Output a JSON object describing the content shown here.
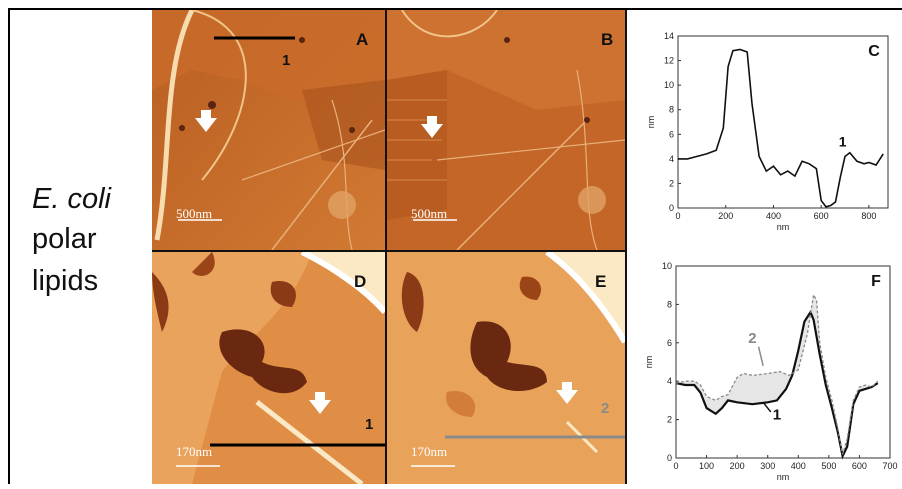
{
  "row_label": {
    "line1": "E. coli",
    "line2": "polar",
    "line3": "lipids"
  },
  "panels": {
    "A": {
      "letter": "A",
      "scale": "500nm",
      "profile_num": "1"
    },
    "B": {
      "letter": "B",
      "scale": "500nm"
    },
    "D": {
      "letter": "D",
      "scale": "170nm",
      "profile_num": "1"
    },
    "E": {
      "letter": "E",
      "scale": "170nm",
      "profile_num": "2"
    }
  },
  "colors": {
    "afm_base": "#c8702a",
    "afm_light": "#f4d7a8",
    "afm_dark": "#5a2410"
  },
  "chart_data": [
    {
      "type": "line",
      "panel": "C",
      "title": "C",
      "xlabel": "nm",
      "ylabel": "nm",
      "xlim": [
        0,
        880
      ],
      "ylim": [
        0,
        14
      ],
      "xticks": [
        "0",
        "200",
        "400",
        "600",
        "800"
      ],
      "yticks": [
        "0",
        "2",
        "4",
        "6",
        "8",
        "10",
        "12",
        "14"
      ],
      "annotation": "1",
      "series": [
        {
          "x": [
            0,
            40,
            80,
            120,
            160,
            190,
            210,
            230,
            260,
            290,
            310,
            340,
            370,
            400,
            430,
            460,
            490,
            520,
            550,
            580,
            600,
            620,
            640,
            660,
            680,
            700,
            720,
            750,
            780,
            800,
            830,
            860
          ],
          "y": [
            4.0,
            4.0,
            4.2,
            4.4,
            4.7,
            6.5,
            11.5,
            12.8,
            12.9,
            12.7,
            8.5,
            4.2,
            3.0,
            3.4,
            2.7,
            3.0,
            2.6,
            3.8,
            3.6,
            3.2,
            0.6,
            0.1,
            0.2,
            0.5,
            2.5,
            4.2,
            4.5,
            3.8,
            3.6,
            3.7,
            3.5,
            4.4
          ]
        }
      ]
    },
    {
      "type": "line",
      "panel": "F",
      "title": "F",
      "xlabel": "nm",
      "ylabel": "nm",
      "xlim": [
        0,
        700
      ],
      "ylim": [
        0,
        10
      ],
      "xticks": [
        "0",
        "100",
        "200",
        "300",
        "400",
        "500",
        "600",
        "700"
      ],
      "yticks": [
        "0",
        "2",
        "4",
        "6",
        "8",
        "10"
      ],
      "annotations": [
        "1",
        "2"
      ],
      "series": [
        {
          "name": "1",
          "x": [
            0,
            30,
            60,
            80,
            100,
            130,
            150,
            170,
            200,
            250,
            300,
            330,
            360,
            380,
            400,
            420,
            440,
            450,
            470,
            490,
            510,
            530,
            545,
            560,
            580,
            600,
            620,
            640,
            660
          ],
          "y": [
            3.9,
            3.8,
            3.8,
            3.4,
            2.6,
            2.3,
            2.6,
            3.0,
            2.9,
            2.8,
            2.9,
            3.0,
            3.6,
            4.3,
            5.6,
            7.1,
            7.6,
            7.2,
            5.4,
            3.8,
            2.6,
            1.3,
            0.1,
            0.6,
            2.8,
            3.5,
            3.6,
            3.7,
            3.9
          ]
        },
        {
          "name": "2",
          "x": [
            0,
            30,
            60,
            80,
            100,
            130,
            150,
            170,
            200,
            220,
            250,
            300,
            340,
            370,
            400,
            430,
            450,
            460,
            470,
            490,
            510,
            530,
            545,
            560,
            580,
            600,
            620,
            640,
            660
          ],
          "y": [
            3.9,
            4.0,
            4.0,
            3.8,
            3.2,
            3.0,
            3.2,
            3.3,
            4.2,
            4.4,
            4.3,
            4.4,
            4.5,
            4.3,
            4.6,
            6.5,
            8.5,
            8.2,
            6.0,
            4.2,
            3.0,
            1.5,
            0.2,
            1.0,
            3.0,
            3.7,
            3.8,
            3.7,
            4.0
          ]
        }
      ]
    }
  ]
}
